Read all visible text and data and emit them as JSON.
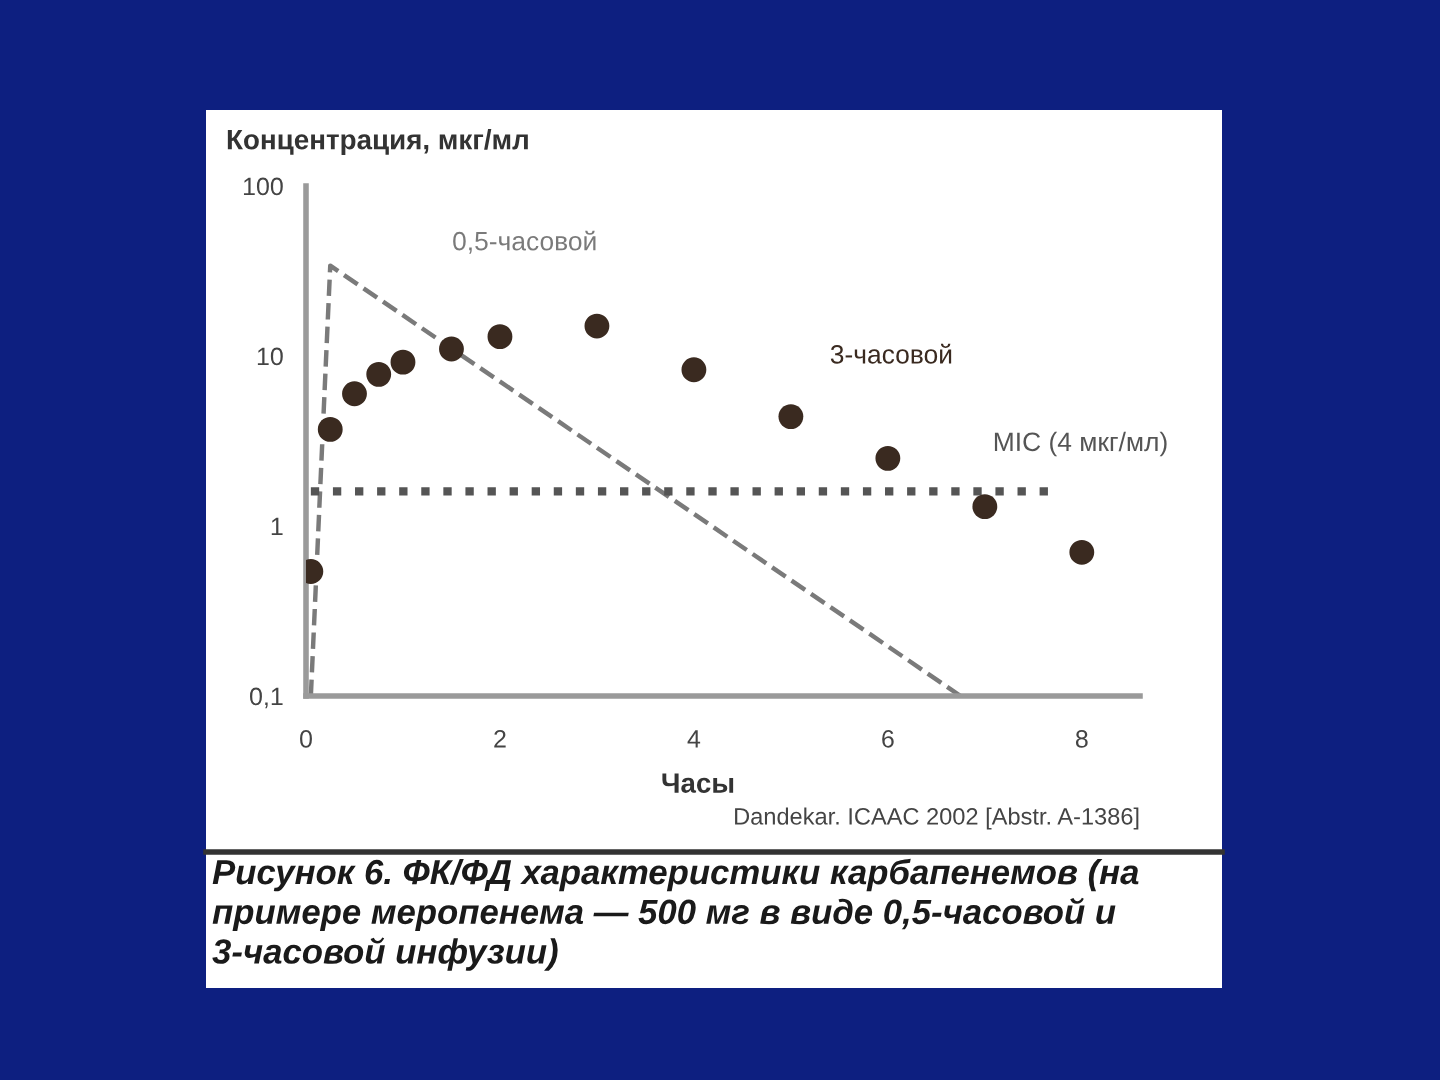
{
  "chart_data": {
    "type": "line",
    "ylabel": "Концентрация, мкг/мл",
    "xlabel": "Часы",
    "annotations": [
      "Dandekar. ICAAC 2002 [Abstr. A-1386]",
      "Рисунок 6. ФК/ФД характеристики карбапенемов (на примере меропенема — 500 мг в виде 0,5-часовой и 3-часовой инфузии)"
    ],
    "log": "y",
    "xlim": [
      0,
      8.6
    ],
    "xticks": [
      0,
      2,
      4,
      6,
      8
    ],
    "ylim": [
      0.1,
      100
    ],
    "yticks": [
      {
        "value": 0.1,
        "label": "0,1"
      },
      1,
      10,
      100
    ],
    "series": [
      {
        "name": "0,5-часовой",
        "line_style": "dashed",
        "marker": "none",
        "color": "#7a7a7a",
        "x": [
          0.05,
          0.25,
          6.75
        ],
        "values": [
          0.1,
          34,
          0.1
        ]
      },
      {
        "name": "3-часовой",
        "type": "scatter",
        "marker": "circle",
        "color": "#3a2a20",
        "x": [
          0.05,
          0.25,
          0.5,
          0.75,
          1,
          1.5,
          2,
          3,
          4,
          5,
          6,
          7,
          8
        ],
        "values": [
          0.54,
          3.7,
          6,
          7.8,
          9.2,
          11,
          13,
          15,
          8.3,
          4.4,
          2.5,
          1.3,
          0.7
        ]
      },
      {
        "name": "MIC (4 мкг/мл)",
        "line_style": "dotted",
        "marker": "none",
        "color": "#555555",
        "x": [
          0.05,
          7.7
        ],
        "values": [
          1.6,
          1.6
        ]
      }
    ]
  }
}
